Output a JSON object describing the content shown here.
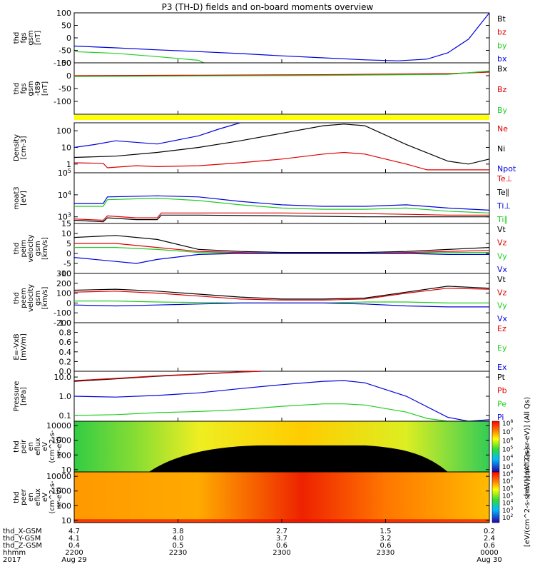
{
  "title": "P3 (TH-D) fields and on-board moments overview",
  "colors": {
    "black": "#000000",
    "red": "#dd0000",
    "green": "#22cc22",
    "blue": "#0000dd",
    "yellow": "#ffff00"
  },
  "chart_data": [
    {
      "id": "fgs",
      "type": "line",
      "ylabel_lines": [
        "thd",
        "fgs",
        "gsm",
        "[nT]"
      ],
      "yscale": "linear",
      "ylim": [
        -100,
        100
      ],
      "ticks": [
        100,
        50,
        0,
        -50,
        -100
      ],
      "legend": [
        {
          "label": "Bt",
          "color": "black"
        },
        {
          "label": "bz",
          "color": "red"
        },
        {
          "label": "by",
          "color": "green"
        },
        {
          "label": "bx",
          "color": "blue"
        }
      ],
      "series": [
        {
          "name": "bx",
          "color": "blue",
          "x": [
            0,
            0.1,
            0.2,
            0.3,
            0.4,
            0.5,
            0.6,
            0.7,
            0.78,
            0.85,
            0.9,
            0.95,
            1.0
          ],
          "y": [
            -33,
            -40,
            -48,
            -55,
            -63,
            -72,
            -80,
            -88,
            -92,
            -85,
            -60,
            -5,
            100
          ]
        },
        {
          "name": "by",
          "color": "green",
          "x": [
            0,
            0.1,
            0.2,
            0.3,
            0.31,
            0.315
          ],
          "y": [
            -55,
            -62,
            -75,
            -90,
            -99,
            -100
          ]
        }
      ]
    },
    {
      "id": "fgs_dsl",
      "type": "line",
      "ylabel_lines": [
        "thd",
        "fgs",
        "gsm",
        "-t89",
        "[nT]"
      ],
      "yscale": "linear",
      "ylim": [
        -150,
        50
      ],
      "ticks": [
        50,
        0,
        -50,
        -100
      ],
      "legend": [
        {
          "label": "Bx",
          "color": "black"
        },
        {
          "label": "Bz",
          "color": "red"
        },
        {
          "label": "By",
          "color": "green"
        }
      ],
      "series": [
        {
          "name": "Bx",
          "color": "black",
          "x": [
            0,
            0.3,
            0.6,
            0.9,
            1.0
          ],
          "y": [
            -2,
            0,
            2,
            6,
            16
          ]
        },
        {
          "name": "Bz",
          "color": "red",
          "x": [
            0,
            0.3,
            0.6,
            0.9,
            1.0
          ],
          "y": [
            0,
            2,
            4,
            8,
            14
          ]
        },
        {
          "name": "By",
          "color": "green",
          "x": [
            0,
            0.3,
            0.6,
            0.9,
            1.0
          ],
          "y": [
            -3,
            -1,
            1,
            5,
            18
          ]
        }
      ]
    },
    {
      "id": "density",
      "type": "line",
      "ylabel_lines": [
        "Density",
        "[cm-3]"
      ],
      "yscale": "log",
      "ylim": [
        0.3,
        300
      ],
      "tick_labels": [
        {
          "v": 100,
          "t": "100"
        },
        {
          "v": 10,
          "t": "10"
        },
        {
          "v": 1,
          "t": "1"
        }
      ],
      "legend": [
        {
          "label": "Ne",
          "color": "red"
        },
        {
          "label": "Ni",
          "color": "black"
        },
        {
          "label": "Npot",
          "color": "blue"
        }
      ],
      "series": [
        {
          "name": "Npot",
          "color": "blue",
          "x": [
            0,
            0.05,
            0.1,
            0.2,
            0.3,
            0.35,
            0.4
          ],
          "y": [
            10,
            15,
            25,
            16,
            50,
            130,
            300
          ]
        },
        {
          "name": "Ni",
          "color": "black",
          "x": [
            0,
            0.1,
            0.2,
            0.3,
            0.4,
            0.5,
            0.6,
            0.65,
            0.7,
            0.8,
            0.9,
            0.95,
            1.0
          ],
          "y": [
            2.5,
            3,
            5,
            10,
            25,
            70,
            200,
            250,
            200,
            15,
            1.5,
            1.0,
            2
          ]
        },
        {
          "name": "Ne",
          "color": "red",
          "x": [
            0,
            0.07,
            0.08,
            0.15,
            0.2,
            0.3,
            0.4,
            0.5,
            0.6,
            0.65,
            0.7,
            0.8,
            0.85,
            1.0
          ],
          "y": [
            1.2,
            1.1,
            0.6,
            0.8,
            0.7,
            0.8,
            1.2,
            2,
            4,
            5,
            4,
            1,
            0.45,
            0.45
          ]
        }
      ]
    },
    {
      "id": "temperature",
      "type": "line",
      "ylabel_lines": [
        "moat3",
        "[eV]"
      ],
      "yscale": "log",
      "ylim": [
        500,
        100000
      ],
      "tick_labels": [
        {
          "v": 100000,
          "t": "10^5"
        },
        {
          "v": 10000,
          "t": "10^4"
        },
        {
          "v": 1000,
          "t": "10^3"
        }
      ],
      "legend": [
        {
          "label": "Te⊥",
          "color": "red"
        },
        {
          "label": "Te∥",
          "color": "black"
        },
        {
          "label": "Ti⊥",
          "color": "blue"
        },
        {
          "label": "Ti∥",
          "color": "green"
        }
      ],
      "series": [
        {
          "name": "Ti⊥",
          "color": "blue",
          "x": [
            0,
            0.07,
            0.08,
            0.2,
            0.3,
            0.4,
            0.5,
            0.6,
            0.7,
            0.8,
            0.9,
            1.0
          ],
          "y": [
            4000,
            4000,
            8000,
            9000,
            8000,
            5000,
            3500,
            3000,
            3000,
            3500,
            2500,
            2000
          ]
        },
        {
          "name": "Ti∥",
          "color": "green",
          "x": [
            0,
            0.07,
            0.08,
            0.2,
            0.3,
            0.4,
            0.5,
            0.6,
            0.7,
            0.8,
            0.9,
            1.0
          ],
          "y": [
            3000,
            3000,
            6000,
            7000,
            5500,
            3500,
            2500,
            2200,
            2200,
            2500,
            1800,
            1500
          ]
        },
        {
          "name": "Te⊥",
          "color": "red",
          "x": [
            0,
            0.07,
            0.08,
            0.15,
            0.2,
            0.21,
            0.3,
            0.5,
            0.7,
            0.8,
            0.9,
            1.0
          ],
          "y": [
            800,
            700,
            1100,
            900,
            900,
            1500,
            1500,
            1500,
            1400,
            1300,
            1200,
            1200
          ]
        },
        {
          "name": "Te∥",
          "color": "black",
          "x": [
            0,
            0.07,
            0.08,
            0.15,
            0.2,
            0.21,
            0.3,
            0.5,
            0.7,
            0.8,
            0.9,
            1.0
          ],
          "y": [
            700,
            600,
            900,
            750,
            750,
            1200,
            1200,
            1100,
            1000,
            1000,
            1000,
            1000
          ]
        }
      ]
    },
    {
      "id": "peim_velocity",
      "type": "line",
      "ylabel_lines": [
        "thd",
        "peim",
        "velocity",
        "gsm",
        "[km/s]"
      ],
      "yscale": "linear",
      "ylim": [
        -10,
        15
      ],
      "ticks": [
        15,
        10,
        5,
        0,
        -5,
        -10
      ],
      "legend": [
        {
          "label": "Vt",
          "color": "black"
        },
        {
          "label": "Vz",
          "color": "red"
        },
        {
          "label": "Vy",
          "color": "green"
        },
        {
          "label": "Vx",
          "color": "blue"
        }
      ],
      "series": [
        {
          "name": "Vt",
          "color": "black",
          "x": [
            0,
            0.1,
            0.2,
            0.3,
            0.4,
            0.5,
            0.6,
            0.7,
            0.8,
            0.9,
            1.0
          ],
          "y": [
            8,
            9,
            7,
            2,
            1,
            0.5,
            0.5,
            0.5,
            1,
            2,
            3
          ]
        },
        {
          "name": "Vz",
          "color": "red",
          "x": [
            0,
            0.1,
            0.2,
            0.3,
            0.4,
            0.5,
            0.6,
            0.7,
            0.8,
            0.9,
            1.0
          ],
          "y": [
            5,
            5,
            3,
            1,
            0.5,
            0,
            0,
            0,
            0.5,
            1,
            1.5
          ]
        },
        {
          "name": "Vy",
          "color": "green",
          "x": [
            0,
            0.1,
            0.2,
            0.3,
            0.4,
            0.5,
            0.6,
            0.7,
            0.8,
            0.9,
            1.0
          ],
          "y": [
            3,
            3,
            2,
            0.5,
            0,
            0,
            0,
            0,
            0,
            0.5,
            0.5
          ]
        },
        {
          "name": "Vx",
          "color": "blue",
          "x": [
            0,
            0.1,
            0.15,
            0.2,
            0.3,
            0.4,
            0.5,
            0.6,
            0.7,
            0.8,
            0.9,
            1.0
          ],
          "y": [
            -2,
            -4,
            -5,
            -3,
            -0.5,
            0,
            0,
            0,
            0,
            0,
            -0.5,
            -0.5
          ]
        }
      ]
    },
    {
      "id": "peem_velocity",
      "type": "line",
      "ylabel_lines": [
        "thd",
        "peem",
        "velocity",
        "gsm",
        "[km/s]"
      ],
      "yscale": "linear",
      "ylim": [
        -200,
        300
      ],
      "ticks": [
        300,
        200,
        100,
        0,
        -100,
        -200
      ],
      "legend": [
        {
          "label": "Vt",
          "color": "black"
        },
        {
          "label": "Vz",
          "color": "red"
        },
        {
          "label": "Vy",
          "color": "green"
        },
        {
          "label": "Vx",
          "color": "blue"
        }
      ],
      "series": [
        {
          "name": "Vt",
          "color": "black",
          "x": [
            0,
            0.1,
            0.2,
            0.3,
            0.4,
            0.5,
            0.6,
            0.7,
            0.8,
            0.9,
            1.0
          ],
          "y": [
            130,
            140,
            120,
            90,
            60,
            40,
            40,
            50,
            110,
            170,
            150
          ]
        },
        {
          "name": "Vz",
          "color": "red",
          "x": [
            0,
            0.1,
            0.2,
            0.3,
            0.4,
            0.5,
            0.6,
            0.7,
            0.8,
            0.9,
            1.0
          ],
          "y": [
            110,
            120,
            100,
            70,
            40,
            30,
            30,
            40,
            100,
            150,
            140
          ]
        },
        {
          "name": "Vy",
          "color": "green",
          "x": [
            0,
            0.1,
            0.2,
            0.3,
            0.4,
            0.5,
            0.6,
            0.7,
            0.8,
            0.9,
            1.0
          ],
          "y": [
            20,
            20,
            10,
            5,
            0,
            0,
            0,
            10,
            10,
            0,
            0
          ]
        },
        {
          "name": "Vx",
          "color": "blue",
          "x": [
            0,
            0.1,
            0.2,
            0.3,
            0.4,
            0.5,
            0.6,
            0.7,
            0.8,
            0.9,
            1.0
          ],
          "y": [
            -20,
            -30,
            -20,
            -10,
            0,
            0,
            0,
            -10,
            -30,
            -40,
            -40
          ]
        }
      ]
    },
    {
      "id": "efield",
      "type": "line",
      "ylabel_lines": [
        "E=-VxB",
        "[mV/m]"
      ],
      "yscale": "linear",
      "ylim": [
        0,
        1
      ],
      "ticks": [
        1.0,
        0.8,
        0.6,
        0.4,
        0.2,
        0.0
      ],
      "tick_format": "fixed1",
      "legend": [
        {
          "label": "Ez",
          "color": "red"
        },
        {
          "label": "Ey",
          "color": "green"
        },
        {
          "label": "Ex",
          "color": "blue"
        }
      ],
      "series": []
    },
    {
      "id": "pressure",
      "type": "line",
      "ylabel_lines": [
        "Pressure",
        "[nPa]"
      ],
      "yscale": "log",
      "ylim": [
        0.05,
        20
      ],
      "tick_labels": [
        {
          "v": 10,
          "t": "10.0"
        },
        {
          "v": 1,
          "t": "1.0"
        },
        {
          "v": 0.1,
          "t": "0.1"
        }
      ],
      "legend": [
        {
          "label": "Pt",
          "color": "black"
        },
        {
          "label": "Pb",
          "color": "red"
        },
        {
          "label": "Pe",
          "color": "green"
        },
        {
          "label": "Pi",
          "color": "blue"
        }
      ],
      "series": [
        {
          "name": "Pt",
          "color": "black",
          "x": [
            0,
            0.1,
            0.2,
            0.3,
            0.4,
            0.45
          ],
          "y": [
            6,
            8,
            11,
            14,
            18,
            20
          ]
        },
        {
          "name": "Pb",
          "color": "red",
          "x": [
            0,
            0.1,
            0.2,
            0.3,
            0.4,
            0.45
          ],
          "y": [
            6.5,
            8.5,
            11.5,
            14.5,
            18.5,
            20
          ]
        },
        {
          "name": "Pi",
          "color": "blue",
          "x": [
            0,
            0.1,
            0.2,
            0.3,
            0.4,
            0.5,
            0.6,
            0.65,
            0.7,
            0.8,
            0.9,
            0.95,
            1.0
          ],
          "y": [
            1.0,
            0.9,
            1.1,
            1.5,
            2.5,
            4,
            6,
            6.5,
            5,
            1,
            0.08,
            0.05,
            0.06
          ]
        },
        {
          "name": "Pe",
          "color": "green",
          "x": [
            0,
            0.1,
            0.2,
            0.3,
            0.4,
            0.5,
            0.6,
            0.65,
            0.7,
            0.8,
            0.85,
            0.9,
            0.95,
            1.0
          ],
          "y": [
            0.1,
            0.11,
            0.14,
            0.16,
            0.2,
            0.3,
            0.4,
            0.4,
            0.35,
            0.15,
            0.07,
            0.05,
            0.05,
            0.05
          ]
        }
      ]
    },
    {
      "id": "peir_eflux",
      "type": "heatmap",
      "ylabel_lines": [
        "thd",
        "peir",
        "en",
        "eflux",
        "eV",
        "(cm^2-s-",
        "sr-eV)"
      ],
      "yscale": "log",
      "ylim": [
        7,
        20000
      ],
      "tick_labels": [
        {
          "v": 10000,
          "t": "10000"
        },
        {
          "v": 1000,
          "t": "1000"
        },
        {
          "v": 100,
          "t": "100"
        },
        {
          "v": 10,
          "t": "10"
        }
      ],
      "colorbar_label": "[eV/(cm^2-s-sr-eV)] (All Qs)",
      "colorbar_ticks": [
        "10^8",
        "10^7",
        "10^6",
        "10^5",
        "10^4",
        "10^3"
      ]
    },
    {
      "id": "peer_eflux",
      "type": "heatmap",
      "ylabel_lines": [
        "thd",
        "peer",
        "en",
        "eflux",
        "eV",
        "(cm^2-s-",
        "sr-eV)"
      ],
      "yscale": "log",
      "ylim": [
        7,
        20000
      ],
      "tick_labels": [
        {
          "v": 10000,
          "t": "10000"
        },
        {
          "v": 1000,
          "t": "1000"
        },
        {
          "v": 100,
          "t": "100"
        },
        {
          "v": 10,
          "t": "10"
        }
      ],
      "colorbar_label": "[eV/(cm^2-s-sr-eV)] (All Qs)",
      "colorbar_ticks": [
        "10^8",
        "10^7",
        "10^6",
        "10^5",
        "10^4",
        "10^3",
        "10^2"
      ]
    }
  ],
  "time_axis": {
    "row_labels": [
      "thd_X-GSM",
      "thd_Y-GSM",
      "thd_Z-GSM",
      "hhmm",
      "2017"
    ],
    "columns": [
      {
        "values": [
          "4.7",
          "4.1",
          "0.4",
          "2200",
          "Aug 29"
        ]
      },
      {
        "values": [
          "3.8",
          "4.0",
          "0.5",
          "2230",
          ""
        ]
      },
      {
        "values": [
          "2.7",
          "3.7",
          "0.6",
          "2300",
          ""
        ]
      },
      {
        "values": [
          "1.5",
          "3.2",
          "0.6",
          "2330",
          ""
        ]
      },
      {
        "values": [
          "0.2",
          "2.4",
          "0.6",
          "0000",
          "Aug 30"
        ]
      }
    ]
  }
}
